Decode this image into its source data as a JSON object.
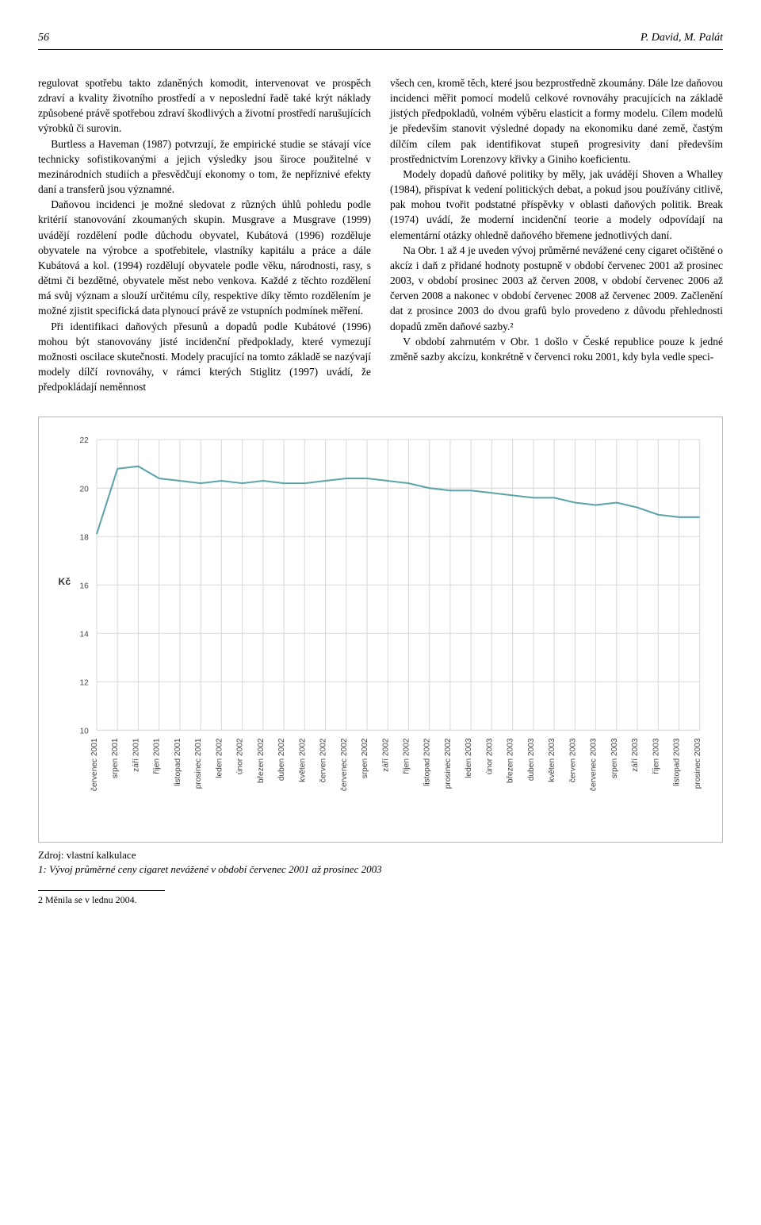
{
  "header": {
    "page_number": "56",
    "authors": "P. David, M. Palát"
  },
  "body": {
    "left_p1": "regulovat spotřebu takto zdaněných komodit, intervenovat ve prospěch zdraví a kvality životního prostředí a v neposlední řadě také krýt náklady způsobené právě spotřebou zdraví škodlivých a životní prostředí narušujících výrobků či surovin.",
    "left_p2": "Burtless a Haveman (1987) potvrzují, že empirické studie se stávají více technicky sofistikovanými a jejich výsledky jsou široce použitelné v mezinárodních studiích a přesvědčují ekonomy o tom, že nepříznivé efekty daní a transferů jsou významné.",
    "left_p3": "Daňovou incidenci je možné sledovat z různých úhlů pohledu podle kritérií stanovování zkoumaných skupin. Musgrave a Musgrave (1999) uvádějí rozdělení podle důchodu obyvatel, Kubátová (1996) rozděluje obyvatele na výrobce a spotřebitele, vlastníky kapitálu a práce a dále Kubátová a kol. (1994) rozdělují obyvatele podle věku, národnosti, rasy, s dětmi či bezdětné, obyvatele měst nebo venkova. Každé z těchto rozdělení má svůj význam a slouží určitému cíly, respektive díky těmto rozdělením je možné zjistit specifická data plynoucí právě ze vstupních podmínek měření.",
    "left_p4": "Při identifikaci daňových přesunů a dopadů podle Kubátové (1996) mohou být stanovovány jisté incidenční předpoklady, které vymezují možnosti oscilace skutečnosti. Modely pracující na tomto základě se nazývají modely dílčí rovnováhy, v rámci kterých Stiglitz (1997) uvádí, že předpokládají neměnnost",
    "right_p1": "všech cen, kromě těch, které jsou bezprostředně zkoumány. Dále lze daňovou incidenci měřit pomocí modelů celkové rovnováhy pracujících na základě jistých předpokladů, volném výběru elasticit a formy modelu. Cílem modelů je především stanovit výsledné dopady na ekonomiku dané země, častým dílčím cílem pak identifikovat stupeň progresivity daní především prostřednictvím Lorenzovy křivky a Giniho koeficientu.",
    "right_p2": "Modely dopadů daňové politiky by měly, jak uvádějí Shoven a Whalley (1984), přispívat k vedení politických debat, a pokud jsou používány citlivě, pak mohou tvořit podstatné příspěvky v oblasti daňových politik. Break (1974) uvádí, že moderní incidenční teorie a modely odpovídají na elementární otázky ohledně daňového břemene jednotlivých daní.",
    "right_p3": "Na Obr. 1 až 4 je uveden vývoj průměrné nevážené ceny cigaret očištěné o akcíz i daň z přidané hodnoty postupně v období červenec 2001 až prosinec 2003, v období prosinec 2003 až červen 2008, v období červenec 2006 až červen 2008 a nakonec v období červenec 2008 až červenec 2009. Začlenění dat z prosince 2003 do dvou grafů bylo provedeno z důvodu přehlednosti dopadů změn daňové sazby.²",
    "right_p4": "V období zahrnutém v Obr. 1 došlo v České republice pouze k jedné změně sazby akcízu, konkrétně v červenci roku 2001, kdy byla vedle speci-"
  },
  "chart": {
    "type": "line",
    "ylabel": "Kč",
    "yticks": [
      10,
      12,
      14,
      16,
      18,
      20,
      22
    ],
    "ylim": [
      10,
      22
    ],
    "xticks": [
      "červenec 2001",
      "srpen 2001",
      "září 2001",
      "říjen 2001",
      "listopad 2001",
      "prosinec 2001",
      "leden 2002",
      "únor 2002",
      "březen 2002",
      "duben 2002",
      "květen 2002",
      "červen 2002",
      "červenec 2002",
      "srpen 2002",
      "září 2002",
      "říjen 2002",
      "listopad 2002",
      "prosinec 2002",
      "leden 2003",
      "únor 2003",
      "březen 2003",
      "duben 2003",
      "květen 2003",
      "červen 2003",
      "červenec 2003",
      "srpen 2003",
      "září 2003",
      "říjen 2003",
      "listopad 2003",
      "prosinec 2003"
    ],
    "values": [
      18.1,
      20.8,
      20.9,
      20.4,
      20.3,
      20.2,
      20.3,
      20.2,
      20.3,
      20.2,
      20.2,
      20.3,
      20.4,
      20.4,
      20.3,
      20.2,
      20.0,
      19.9,
      19.9,
      19.8,
      19.7,
      19.6,
      19.6,
      19.4,
      19.3,
      19.4,
      19.2,
      18.9,
      18.8,
      18.8
    ],
    "line_color": "#5ba4a8",
    "line_width": 2,
    "grid_color": "#d9d9d9",
    "tick_font_size": 10,
    "label_font_size": 12,
    "plot_bg": "#ffffff"
  },
  "source": "Zdroj: vlastní kalkulace",
  "caption": "1: Vývoj průměrné ceny cigaret nevážené v období červenec 2001 až prosinec 2003",
  "footnote": "2   Měnila se v lednu 2004."
}
